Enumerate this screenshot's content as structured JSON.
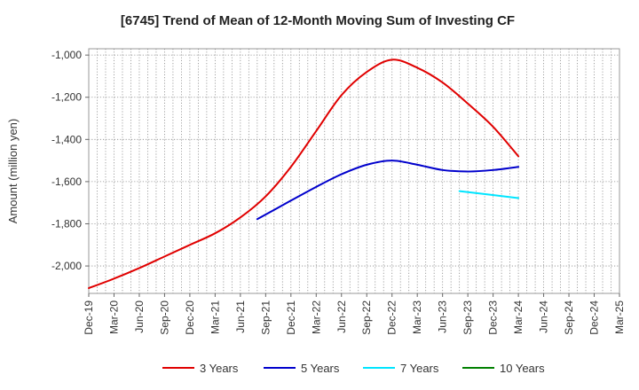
{
  "chart_data": {
    "type": "line",
    "title": "[6745]  Trend of Mean of 12-Month Moving Sum of Investing CF",
    "xlabel": "",
    "ylabel": "Amount (million yen)",
    "ylim": [
      -2130,
      -970
    ],
    "yticks": [
      -1000,
      -1200,
      -1400,
      -1600,
      -1800,
      -2000
    ],
    "ytick_labels": [
      "-1,000",
      "-1,200",
      "-1,400",
      "-1,600",
      "-1,800",
      "-2,000"
    ],
    "categories": [
      "Dec-19",
      "Mar-20",
      "Jun-20",
      "Sep-20",
      "Dec-20",
      "Mar-21",
      "Jun-21",
      "Sep-21",
      "Dec-21",
      "Mar-22",
      "Jun-22",
      "Sep-22",
      "Dec-22",
      "Mar-23",
      "Jun-23",
      "Sep-23",
      "Dec-23",
      "Mar-24",
      "Jun-24",
      "Sep-24",
      "Dec-24",
      "Mar-25"
    ],
    "grid": true,
    "legend_position": "bottom",
    "series": [
      {
        "name": "3 Years",
        "color": "#e00000",
        "x": [
          "Dec-19",
          "Mar-20",
          "Jun-20",
          "Sep-20",
          "Dec-20",
          "Mar-21",
          "Jun-21",
          "Sep-21",
          "Dec-21",
          "Mar-22",
          "Jun-22",
          "Sep-22",
          "Dec-22",
          "Mar-23",
          "Jun-23",
          "Sep-23",
          "Dec-23",
          "Mar-24"
        ],
        "values": [
          -2105,
          -2060,
          -2010,
          -1955,
          -1900,
          -1845,
          -1770,
          -1670,
          -1530,
          -1360,
          -1190,
          -1080,
          -1022,
          -1060,
          -1130,
          -1230,
          -1340,
          -1480
        ]
      },
      {
        "name": "5 Years",
        "color": "#0000cc",
        "x": [
          "Aug-21",
          "Dec-21",
          "Mar-22",
          "Jun-22",
          "Sep-22",
          "Dec-22",
          "Mar-23",
          "Jun-23",
          "Sep-23",
          "Dec-23",
          "Mar-24"
        ],
        "values": [
          -1778,
          -1690,
          -1625,
          -1565,
          -1520,
          -1500,
          -1520,
          -1545,
          -1552,
          -1545,
          -1530
        ]
      },
      {
        "name": "7 Years",
        "color": "#00e5ff",
        "x": [
          "Aug-23",
          "Mar-24"
        ],
        "values": [
          -1645,
          -1678
        ]
      },
      {
        "name": "10 Years",
        "color": "#008000",
        "x": [],
        "values": []
      }
    ]
  }
}
